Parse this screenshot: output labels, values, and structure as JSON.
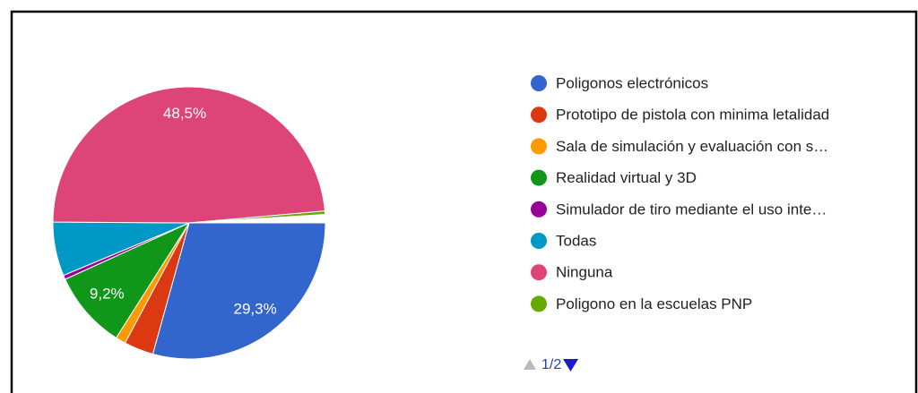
{
  "chart_data": {
    "type": "pie",
    "categories": [
      "Poligonos electrónicos",
      "Prototipo de pistola con minima letalidad",
      "Sala de simulación y evaluación con s…",
      "Realidad virtual y 3D",
      "Simulador de tiro mediante el uso inte…",
      "Todas",
      "Ninguna",
      "Poligono en la escuelas PNP"
    ],
    "values": [
      29.3,
      3.5,
      1.2,
      9.2,
      0.5,
      6.4,
      48.5,
      0.4
    ],
    "value_labels": [
      "29,3%",
      null,
      null,
      "9,2%",
      null,
      null,
      "48,5%",
      null
    ],
    "colors": [
      "#3366cc",
      "#dc3912",
      "#ff9900",
      "#109618",
      "#990099",
      "#0099c6",
      "#dd4477",
      "#66aa00"
    ],
    "pagination": "1/2"
  }
}
